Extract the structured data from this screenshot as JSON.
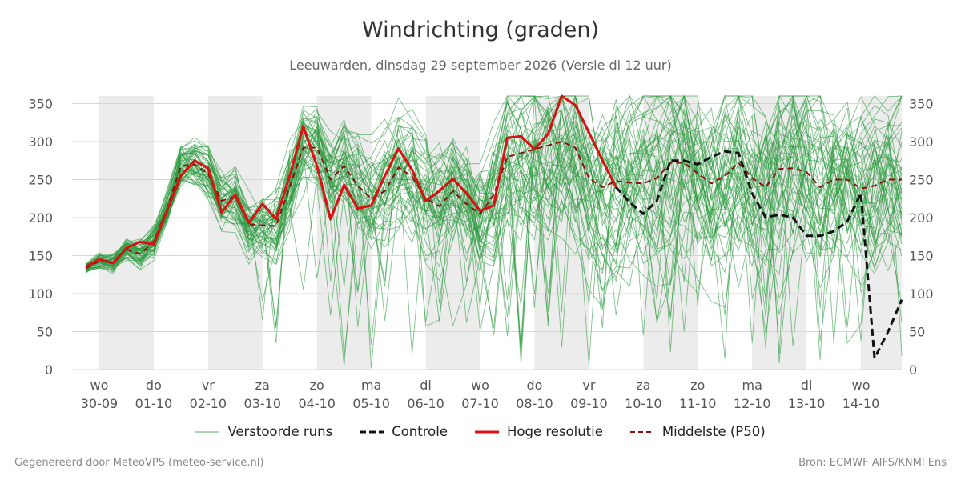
{
  "chart_data": {
    "type": "line",
    "title": "Windrichting (graden)",
    "subtitle": "Leeuwarden, dinsdag 29 september 2026 (Versie di 12 uur)",
    "ylim": [
      0,
      360
    ],
    "yticks": [
      0,
      50,
      100,
      150,
      200,
      250,
      300,
      350
    ],
    "xlim": [
      0,
      14.75
    ],
    "x_ticks": [
      {
        "x": 0,
        "day": "wo",
        "date": "30-09"
      },
      {
        "x": 1,
        "day": "do",
        "date": "01-10"
      },
      {
        "x": 2,
        "day": "vr",
        "date": "02-10"
      },
      {
        "x": 3,
        "day": "za",
        "date": "03-10"
      },
      {
        "x": 4,
        "day": "zo",
        "date": "04-10"
      },
      {
        "x": 5,
        "day": "ma",
        "date": "05-10"
      },
      {
        "x": 6,
        "day": "di",
        "date": "06-10"
      },
      {
        "x": 7,
        "day": "wo",
        "date": "07-10"
      },
      {
        "x": 8,
        "day": "do",
        "date": "08-10"
      },
      {
        "x": 9,
        "day": "vr",
        "date": "09-10"
      },
      {
        "x": 10,
        "day": "za",
        "date": "10-10"
      },
      {
        "x": 11,
        "day": "zo",
        "date": "11-10"
      },
      {
        "x": 12,
        "day": "ma",
        "date": "12-10"
      },
      {
        "x": 13,
        "day": "di",
        "date": "13-10"
      },
      {
        "x": 14,
        "day": "wo",
        "date": "14-10"
      }
    ],
    "shaded_days": [
      0,
      2,
      4,
      6,
      8,
      10,
      12,
      14
    ],
    "grid": true,
    "legend_position": "bottom",
    "series": [
      {
        "name": "Hoge resolutie",
        "color": "#dd1111",
        "x": [
          -0.25,
          0,
          0.25,
          0.5,
          0.75,
          1,
          1.25,
          1.5,
          1.75,
          2,
          2.25,
          2.5,
          2.75,
          3,
          3.25,
          3.5,
          3.75,
          4,
          4.25,
          4.5,
          4.75,
          5,
          5.25,
          5.5,
          5.75,
          6,
          6.25,
          6.5,
          6.75,
          7,
          7.25,
          7.5,
          7.75,
          8,
          8.25,
          8.5,
          8.75,
          9,
          9.25,
          9.5
        ],
        "y": [
          135,
          145,
          140,
          160,
          168,
          165,
          210,
          255,
          275,
          265,
          207,
          230,
          193,
          218,
          198,
          255,
          320,
          268,
          198,
          243,
          212,
          216,
          255,
          291,
          263,
          222,
          235,
          251,
          232,
          209,
          216,
          305,
          307,
          290,
          310,
          360,
          348,
          312,
          275,
          240
        ]
      },
      {
        "name": "Controle",
        "color": "#111111",
        "x": [
          -0.25,
          0,
          0.25,
          0.5,
          0.75,
          1,
          1.25,
          1.5,
          1.75,
          2,
          2.25,
          2.5,
          2.75,
          3,
          3.25,
          3.5,
          3.75,
          4,
          4.25,
          4.5,
          4.75,
          5,
          5.25,
          5.5,
          5.75,
          6,
          6.25,
          6.5,
          6.75,
          7,
          7.25,
          7.5,
          7.75,
          8,
          8.25,
          8.5,
          8.75,
          9,
          9.25,
          9.5,
          9.75,
          10,
          10.25,
          10.5,
          10.75,
          11,
          11.25,
          11.5,
          11.75,
          12,
          12.25,
          12.5,
          12.75,
          13,
          13.25,
          13.5,
          13.75,
          14,
          14.25,
          14.5,
          14.75
        ],
        "y": [
          135,
          145,
          140,
          160,
          168,
          165,
          210,
          255,
          275,
          265,
          207,
          230,
          193,
          218,
          198,
          255,
          320,
          268,
          198,
          243,
          212,
          216,
          255,
          291,
          263,
          222,
          235,
          251,
          232,
          209,
          216,
          305,
          307,
          290,
          310,
          360,
          348,
          312,
          275,
          240,
          220,
          205,
          222,
          275,
          275,
          270,
          280,
          287,
          285,
          232,
          200,
          204,
          200,
          176,
          176,
          182,
          195,
          232,
          15,
          50,
          92
        ]
      },
      {
        "name": "Middelste (P50)",
        "color": "#8b0e0e",
        "x": [
          -0.25,
          0,
          0.25,
          0.5,
          0.75,
          1,
          1.25,
          1.5,
          1.75,
          2,
          2.25,
          2.5,
          2.75,
          3,
          3.25,
          3.5,
          3.75,
          4,
          4.25,
          4.5,
          4.75,
          5,
          5.25,
          5.5,
          5.75,
          6,
          6.25,
          6.5,
          6.75,
          7,
          7.25,
          7.5,
          7.75,
          8,
          8.25,
          8.5,
          8.75,
          9,
          9.25,
          9.5,
          9.75,
          10,
          10.25,
          10.5,
          10.75,
          11,
          11.25,
          11.5,
          11.75,
          12,
          12.25,
          12.5,
          12.75,
          13,
          13.25,
          13.5,
          13.75,
          14,
          14.25,
          14.5,
          14.75
        ],
        "y": [
          133,
          143,
          141,
          158,
          152,
          168,
          212,
          268,
          270,
          258,
          222,
          228,
          191,
          190,
          189,
          240,
          292,
          292,
          250,
          268,
          242,
          225,
          235,
          266,
          254,
          225,
          215,
          235,
          218,
          205,
          230,
          280,
          285,
          290,
          295,
          300,
          292,
          252,
          240,
          248,
          246,
          245,
          252,
          272,
          272,
          258,
          245,
          255,
          272,
          252,
          240,
          264,
          265,
          260,
          240,
          250,
          250,
          238,
          242,
          250,
          250
        ]
      }
    ],
    "ensemble": {
      "name": "Verstoorde runs",
      "color": "#2a9a3c",
      "count": 50,
      "x_start": -0.25,
      "x_step": 0.25,
      "points": 61,
      "min": 0,
      "max": 360
    }
  },
  "legend": [
    {
      "label": "Verstoorde runs",
      "color": "#2a9a3c",
      "style": "thin"
    },
    {
      "label": "Controle",
      "color": "#111111",
      "style": "dashed"
    },
    {
      "label": "Hoge resolutie",
      "color": "#dd1111",
      "style": "solid"
    },
    {
      "label": "Middelste (P50)",
      "color": "#8b0e0e",
      "style": "dashed"
    }
  ],
  "footer": {
    "left": "Gegenereerd door MeteoVPS (meteo-service.nl)",
    "right": "Bron: ECMWF AIFS/KNMI Ens"
  }
}
